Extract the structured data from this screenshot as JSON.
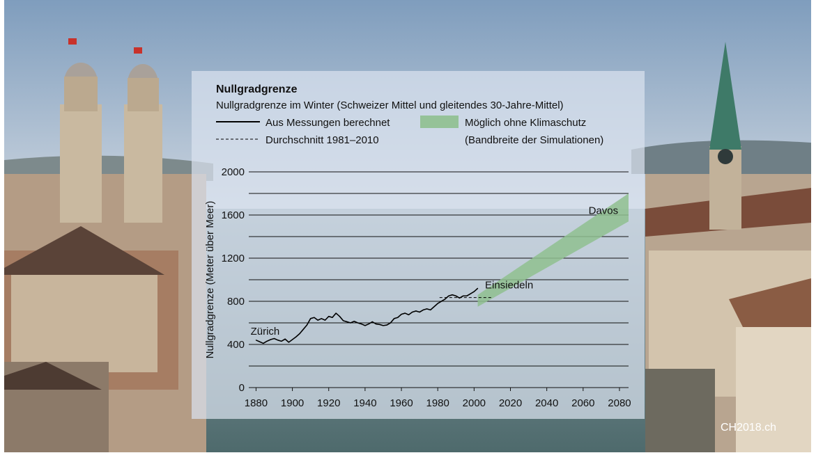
{
  "chart_data": {
    "type": "line",
    "title": "Nullgradgrenze",
    "subtitle": "Nullgradgrenze im Winter (Schweizer Mittel und gleitendes 30-Jahre-Mittel)",
    "xlabel": "",
    "ylabel": "Nullgradgrenze (Meter über Meer)",
    "xlim": [
      1876,
      2085
    ],
    "ylim": [
      0,
      2000
    ],
    "xticks": [
      "1880",
      "1900",
      "1920",
      "1940",
      "1960",
      "1980",
      "2000",
      "2020",
      "2040",
      "2060",
      "2080"
    ],
    "yticks": [
      "0",
      "400",
      "800",
      "1200",
      "1600",
      "2000"
    ],
    "grid_step": 200,
    "legend": [
      {
        "label": "Aus Messungen berechnet",
        "style": "solid"
      },
      {
        "label": "Durchschnitt 1981–2010",
        "style": "dashed"
      },
      {
        "label": "Möglich ohne Klimaschutz",
        "style": "band"
      },
      {
        "label": "(Bandbreite der Simulationen)",
        "style": "none"
      }
    ],
    "series": [
      {
        "name": "Aus Messungen berechnet",
        "color": "#000000",
        "x": [
          1880,
          1882,
          1884,
          1886,
          1888,
          1890,
          1892,
          1894,
          1896,
          1898,
          1900,
          1902,
          1904,
          1906,
          1908,
          1910,
          1912,
          1914,
          1916,
          1918,
          1920,
          1922,
          1924,
          1926,
          1928,
          1930,
          1932,
          1934,
          1936,
          1938,
          1940,
          1942,
          1944,
          1946,
          1948,
          1950,
          1952,
          1954,
          1956,
          1958,
          1960,
          1962,
          1964,
          1966,
          1968,
          1970,
          1972,
          1974,
          1976,
          1978,
          1980,
          1982,
          1984,
          1986,
          1988,
          1990,
          1992,
          1994,
          1996,
          1998,
          2000,
          2002
        ],
        "y": [
          440,
          425,
          410,
          430,
          445,
          455,
          440,
          430,
          450,
          420,
          445,
          470,
          500,
          540,
          580,
          640,
          650,
          625,
          640,
          625,
          660,
          650,
          690,
          660,
          620,
          610,
          600,
          615,
          600,
          590,
          575,
          590,
          610,
          590,
          585,
          575,
          580,
          600,
          640,
          650,
          680,
          690,
          675,
          700,
          710,
          700,
          720,
          730,
          720,
          750,
          780,
          800,
          820,
          850,
          860,
          850,
          830,
          850,
          850,
          870,
          890,
          920
        ]
      },
      {
        "name": "Durchschnitt 1981–2010",
        "color": "#000000",
        "x": [
          1981,
          2010
        ],
        "y": [
          835,
          835
        ]
      }
    ],
    "band": {
      "name": "Möglich ohne Klimaschutz",
      "color": "#8fc08f",
      "x": [
        2002,
        2085
      ],
      "lower": [
        750,
        1540
      ],
      "upper": [
        860,
        1800
      ]
    },
    "annotations": [
      {
        "text": "Zürich",
        "x": 1877,
        "y": 490
      },
      {
        "text": "Einsiedeln",
        "x": 2006,
        "y": 920
      },
      {
        "text": "Davos",
        "x": 2063,
        "y": 1610
      }
    ]
  },
  "credit": "CH2018.ch"
}
